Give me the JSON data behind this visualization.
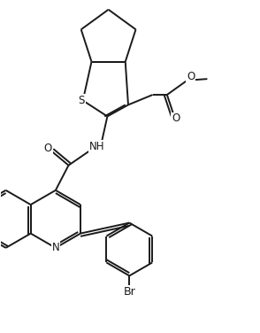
{
  "bg_color": "#ffffff",
  "line_color": "#1a1a1a",
  "line_width": 1.4,
  "figsize": [
    2.94,
    3.76
  ],
  "dpi": 100,
  "xlim": [
    0,
    9.0
  ],
  "ylim": [
    0,
    11.5
  ],
  "fs": 8.5
}
